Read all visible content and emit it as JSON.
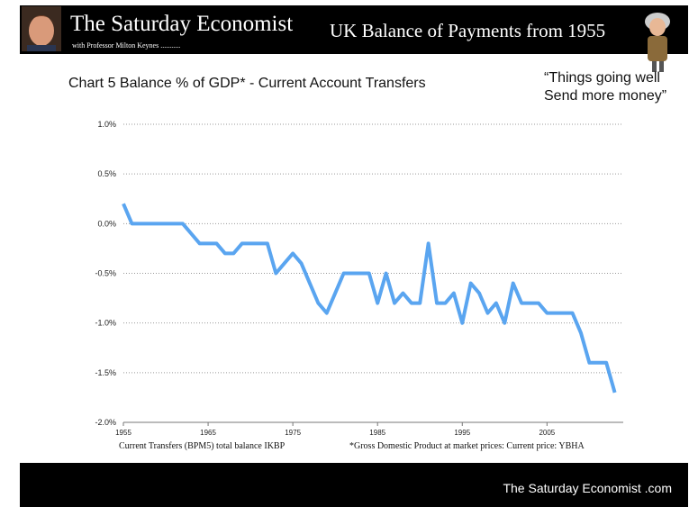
{
  "header": {
    "brand": "The Saturday Economist",
    "byline": "with Professor Milton Keynes ...........",
    "headline": "UK Balance of Payments from 1955"
  },
  "footer": {
    "site": "The Saturday Economist .com"
  },
  "chart_data": {
    "type": "line",
    "title": "Chart 5 Balance % of GDP* - Current Account Transfers",
    "annotation": [
      "“Things going well",
      "Send more money”"
    ],
    "notes": [
      "Current Transfers (BPM5) total balance IKBP",
      "*Gross Domestic Product at market prices: Current price: YBHA"
    ],
    "x": [
      1955,
      1956,
      1957,
      1958,
      1959,
      1960,
      1961,
      1962,
      1963,
      1964,
      1965,
      1966,
      1967,
      1968,
      1969,
      1970,
      1971,
      1972,
      1973,
      1974,
      1975,
      1976,
      1977,
      1978,
      1979,
      1980,
      1981,
      1982,
      1983,
      1984,
      1985,
      1986,
      1987,
      1988,
      1989,
      1990,
      1991,
      1992,
      1993,
      1994,
      1995,
      1996,
      1997,
      1998,
      1999,
      2000,
      2001,
      2002,
      2003,
      2004,
      2005,
      2006,
      2007,
      2008,
      2009,
      2010,
      2011,
      2012,
      2013
    ],
    "series": [
      {
        "color": "#5aa5f0",
        "values": [
          0.2,
          0.0,
          0.0,
          0.0,
          0.0,
          0.0,
          0.0,
          0.0,
          -0.1,
          -0.2,
          -0.2,
          -0.2,
          -0.3,
          -0.3,
          -0.2,
          -0.2,
          -0.2,
          -0.2,
          -0.5,
          -0.4,
          -0.3,
          -0.4,
          -0.6,
          -0.8,
          -0.9,
          -0.7,
          -0.5,
          -0.5,
          -0.5,
          -0.5,
          -0.8,
          -0.5,
          -0.8,
          -0.7,
          -0.8,
          -0.8,
          -0.2,
          -0.8,
          -0.8,
          -0.7,
          -1.0,
          -0.6,
          -0.7,
          -0.9,
          -0.8,
          -1.0,
          -0.6,
          -0.8,
          -0.8,
          -0.8,
          -0.9,
          -0.9,
          -0.9,
          -0.9,
          -1.1,
          -1.4,
          -1.4,
          -1.4,
          -1.7
        ]
      }
    ],
    "xlim": [
      1955,
      2014
    ],
    "xticks": [
      1955,
      1965,
      1975,
      1985,
      1995,
      2005
    ],
    "ylim": [
      -2,
      1
    ],
    "yticks": [
      {
        "value": -2,
        "label": "-2.0%"
      },
      {
        "value": -1.5,
        "label": "-1.5%"
      },
      {
        "value": -1,
        "label": "-1.0%"
      },
      {
        "value": -0.5,
        "label": "-0.5%"
      },
      {
        "value": 0,
        "label": "0.0%"
      },
      {
        "value": 0.5,
        "label": "0.5%"
      },
      {
        "value": 1,
        "label": "1.0%"
      }
    ],
    "grid": true
  }
}
